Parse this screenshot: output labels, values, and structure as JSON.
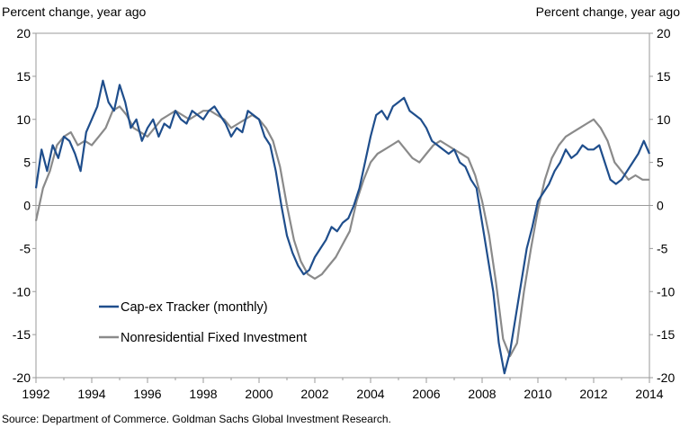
{
  "chart_data": {
    "type": "line",
    "ylabel_left": "Percent change, year ago",
    "ylabel_right": "Percent change, year ago",
    "source": "Source: Department of Commerce. Goldman Sachs Global Investment Research.",
    "xlim": [
      1992,
      2014
    ],
    "ylim": [
      -20,
      20
    ],
    "x_ticks": [
      1992,
      1994,
      1996,
      1998,
      2000,
      2002,
      2004,
      2006,
      2008,
      2010,
      2012,
      2014
    ],
    "y_ticks": [
      20,
      15,
      10,
      5,
      0,
      -5,
      -10,
      -15,
      -20
    ],
    "zero_line": true,
    "grid": false,
    "legend_position": "lower-left",
    "series": [
      {
        "name": "Cap-ex Tracker (monthly)",
        "color": "#1f4e8c",
        "x": [
          1992.0,
          1992.2,
          1992.4,
          1992.6,
          1992.8,
          1993.0,
          1993.2,
          1993.4,
          1993.6,
          1993.8,
          1994.0,
          1994.2,
          1994.4,
          1994.6,
          1994.8,
          1995.0,
          1995.2,
          1995.4,
          1995.6,
          1995.8,
          1996.0,
          1996.2,
          1996.4,
          1996.6,
          1996.8,
          1997.0,
          1997.2,
          1997.4,
          1997.6,
          1997.8,
          1998.0,
          1998.2,
          1998.4,
          1998.6,
          1998.8,
          1999.0,
          1999.2,
          1999.4,
          1999.6,
          1999.8,
          2000.0,
          2000.2,
          2000.4,
          2000.6,
          2000.8,
          2001.0,
          2001.2,
          2001.4,
          2001.6,
          2001.8,
          2002.0,
          2002.2,
          2002.4,
          2002.6,
          2002.8,
          2003.0,
          2003.2,
          2003.4,
          2003.6,
          2003.8,
          2004.0,
          2004.2,
          2004.4,
          2004.6,
          2004.8,
          2005.0,
          2005.2,
          2005.4,
          2005.6,
          2005.8,
          2006.0,
          2006.2,
          2006.4,
          2006.6,
          2006.8,
          2007.0,
          2007.2,
          2007.4,
          2007.6,
          2007.8,
          2008.0,
          2008.2,
          2008.4,
          2008.6,
          2008.8,
          2009.0,
          2009.2,
          2009.4,
          2009.6,
          2009.8,
          2010.0,
          2010.2,
          2010.4,
          2010.6,
          2010.8,
          2011.0,
          2011.2,
          2011.4,
          2011.6,
          2011.8,
          2012.0,
          2012.2,
          2012.4,
          2012.6,
          2012.8,
          2013.0,
          2013.2,
          2013.4,
          2013.6,
          2013.8,
          2014.0
        ],
        "values": [
          2.0,
          6.5,
          4.0,
          7.0,
          5.5,
          8.0,
          7.5,
          6.0,
          4.0,
          8.5,
          10.0,
          11.5,
          14.5,
          12.0,
          11.0,
          14.0,
          12.0,
          9.0,
          10.0,
          7.5,
          9.0,
          10.0,
          8.0,
          9.5,
          9.0,
          11.0,
          10.0,
          9.5,
          11.0,
          10.5,
          10.0,
          11.0,
          11.5,
          10.5,
          9.5,
          8.0,
          9.0,
          8.5,
          11.0,
          10.5,
          10.0,
          8.0,
          7.0,
          4.0,
          0.0,
          -3.5,
          -5.5,
          -7.0,
          -8.0,
          -7.5,
          -6.0,
          -5.0,
          -4.0,
          -2.5,
          -3.0,
          -2.0,
          -1.5,
          0.0,
          2.0,
          5.0,
          8.0,
          10.5,
          11.0,
          10.0,
          11.5,
          12.0,
          12.5,
          11.0,
          10.5,
          10.0,
          9.0,
          7.5,
          7.0,
          6.5,
          6.0,
          6.5,
          5.0,
          4.5,
          3.0,
          2.0,
          -2.0,
          -6.0,
          -10.0,
          -16.0,
          -19.5,
          -17.0,
          -13.0,
          -9.0,
          -5.0,
          -2.5,
          0.5,
          1.5,
          2.5,
          4.0,
          5.0,
          6.5,
          5.5,
          6.0,
          7.0,
          6.5,
          6.5,
          7.0,
          5.0,
          3.0,
          2.5,
          3.0,
          4.0,
          5.0,
          6.0,
          7.5,
          6.0
        ]
      },
      {
        "name": "Nonresidential Fixed Investment",
        "color": "#8a8a8a",
        "x": [
          1992.0,
          1992.25,
          1992.5,
          1992.75,
          1993.0,
          1993.25,
          1993.5,
          1993.75,
          1994.0,
          1994.25,
          1994.5,
          1994.75,
          1995.0,
          1995.25,
          1995.5,
          1995.75,
          1996.0,
          1996.25,
          1996.5,
          1996.75,
          1997.0,
          1997.25,
          1997.5,
          1997.75,
          1998.0,
          1998.25,
          1998.5,
          1998.75,
          1999.0,
          1999.25,
          1999.5,
          1999.75,
          2000.0,
          2000.25,
          2000.5,
          2000.75,
          2001.0,
          2001.25,
          2001.5,
          2001.75,
          2002.0,
          2002.25,
          2002.5,
          2002.75,
          2003.0,
          2003.25,
          2003.5,
          2003.75,
          2004.0,
          2004.25,
          2004.5,
          2004.75,
          2005.0,
          2005.25,
          2005.5,
          2005.75,
          2006.0,
          2006.25,
          2006.5,
          2006.75,
          2007.0,
          2007.25,
          2007.5,
          2007.75,
          2008.0,
          2008.25,
          2008.5,
          2008.75,
          2009.0,
          2009.25,
          2009.5,
          2009.75,
          2010.0,
          2010.25,
          2010.5,
          2010.75,
          2011.0,
          2011.25,
          2011.5,
          2011.75,
          2012.0,
          2012.25,
          2012.5,
          2012.75,
          2013.0,
          2013.25,
          2013.5,
          2013.75,
          2014.0
        ],
        "values": [
          -1.8,
          2.0,
          4.0,
          7.0,
          8.0,
          8.5,
          7.0,
          7.5,
          7.0,
          8.0,
          9.0,
          11.0,
          11.5,
          10.5,
          9.0,
          8.5,
          8.0,
          9.0,
          10.0,
          10.5,
          11.0,
          10.5,
          10.0,
          10.5,
          11.0,
          11.0,
          10.5,
          10.0,
          9.0,
          9.5,
          10.0,
          10.5,
          10.0,
          9.0,
          7.5,
          4.5,
          0.0,
          -4.0,
          -6.5,
          -8.0,
          -8.5,
          -8.0,
          -7.0,
          -6.0,
          -4.5,
          -3.0,
          0.5,
          3.0,
          5.0,
          6.0,
          6.5,
          7.0,
          7.5,
          6.5,
          5.5,
          5.0,
          6.0,
          7.0,
          7.5,
          7.0,
          6.5,
          6.0,
          5.5,
          3.5,
          0.5,
          -3.5,
          -9.0,
          -15.5,
          -17.5,
          -16.0,
          -10.0,
          -5.0,
          -0.5,
          3.0,
          5.5,
          7.0,
          8.0,
          8.5,
          9.0,
          9.5,
          10.0,
          9.0,
          7.5,
          5.0,
          4.0,
          3.0,
          3.5,
          3.0,
          3.0
        ]
      }
    ]
  }
}
